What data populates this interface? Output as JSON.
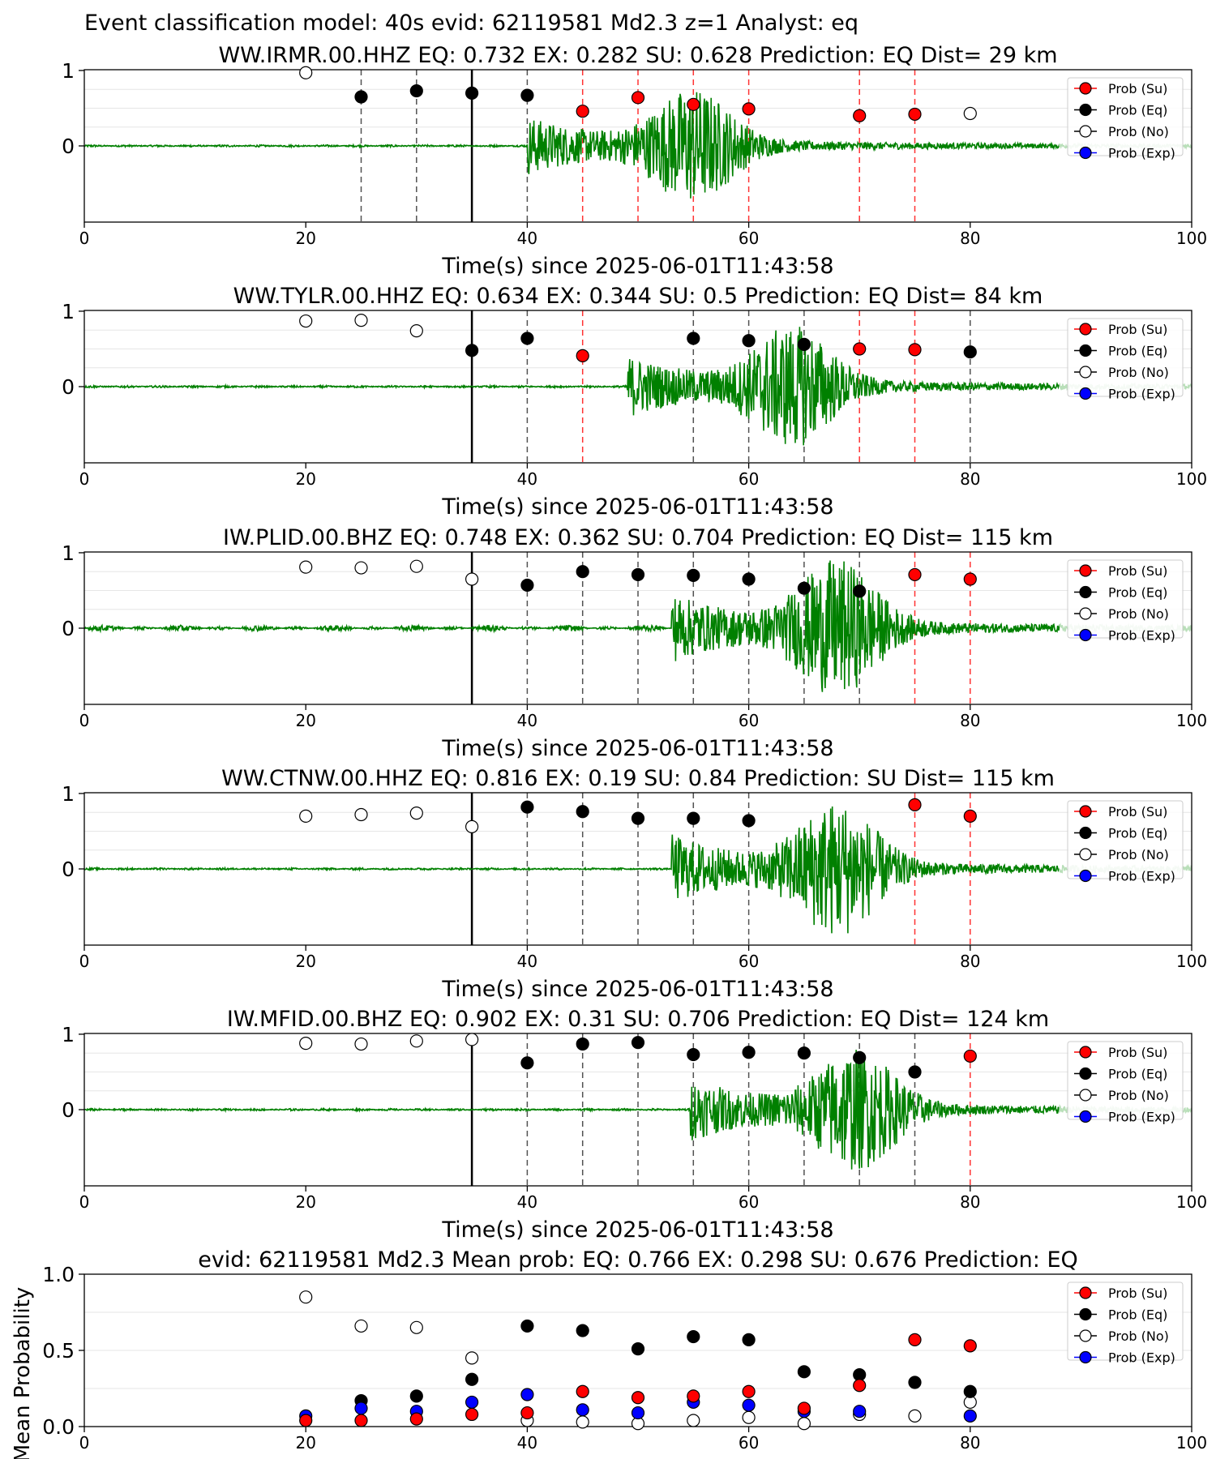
{
  "figure_title": "Event classification model: 40s evid: 62119581 Md2.3 z=1 Analyst: eq",
  "legend_labels": [
    "Prob (Su)",
    "Prob (Eq)",
    "Prob (No)",
    "Prob (Exp)"
  ],
  "colors": {
    "su": "#ff0000",
    "eq": "#000000",
    "no": "#ffffff",
    "exp": "#0000ff",
    "waveform": "#008000",
    "waveform_tail": "#b9dfb9"
  },
  "chart_data": [
    {
      "type": "scatter",
      "title": "WW.IRMR.00.HHZ   EQ: 0.732  EX: 0.282  SU: 0.628   Prediction: EQ    Dist= 29 km",
      "xlabel": "Time(s) since 2025-06-01T11:43:58",
      "ylabel": "",
      "xlim": [
        0,
        100
      ],
      "x_ticks": [
        "0",
        "20",
        "40",
        "60",
        "80",
        "100"
      ],
      "y_ticks": [
        "0",
        "1"
      ],
      "pick_time": 35,
      "waveform": {
        "onset": 40,
        "peak_amplitude": 0.85,
        "tail_start": 88
      },
      "series": [
        {
          "name": "Prob (No)",
          "points": [
            [
              20,
              0.97
            ],
            [
              80,
              0.43
            ]
          ]
        },
        {
          "name": "Prob (Eq)",
          "points": [
            [
              25,
              0.65
            ],
            [
              30,
              0.73
            ],
            [
              35,
              0.7
            ],
            [
              40,
              0.67
            ]
          ]
        },
        {
          "name": "Prob (Su)",
          "points": [
            [
              45,
              0.46
            ],
            [
              50,
              0.64
            ],
            [
              55,
              0.55
            ],
            [
              60,
              0.49
            ],
            [
              70,
              0.4
            ],
            [
              75,
              0.42
            ]
          ]
        }
      ],
      "window_markers": [
        {
          "x": 25,
          "class": "eq"
        },
        {
          "x": 30,
          "class": "eq"
        },
        {
          "x": 40,
          "class": "eq"
        },
        {
          "x": 45,
          "class": "su"
        },
        {
          "x": 50,
          "class": "su"
        },
        {
          "x": 55,
          "class": "su"
        },
        {
          "x": 60,
          "class": "su"
        },
        {
          "x": 70,
          "class": "su"
        },
        {
          "x": 75,
          "class": "su"
        }
      ]
    },
    {
      "type": "scatter",
      "title": "WW.TYLR.00.HHZ   EQ: 0.634  EX: 0.344  SU: 0.5   Prediction: EQ    Dist= 84 km",
      "xlabel": "Time(s) since 2025-06-01T11:43:58",
      "ylabel": "",
      "xlim": [
        0,
        100
      ],
      "x_ticks": [
        "0",
        "20",
        "40",
        "60",
        "80",
        "100"
      ],
      "y_ticks": [
        "0",
        "1"
      ],
      "pick_time": 35,
      "waveform": {
        "onset": 49,
        "peak_amplitude": 0.9,
        "tail_start": 88
      },
      "series": [
        {
          "name": "Prob (No)",
          "points": [
            [
              20,
              0.87
            ],
            [
              25,
              0.88
            ],
            [
              30,
              0.74
            ]
          ]
        },
        {
          "name": "Prob (Eq)",
          "points": [
            [
              35,
              0.48
            ],
            [
              40,
              0.64
            ],
            [
              55,
              0.64
            ],
            [
              60,
              0.61
            ],
            [
              65,
              0.56
            ],
            [
              80,
              0.46
            ]
          ]
        },
        {
          "name": "Prob (Su)",
          "points": [
            [
              45,
              0.41
            ],
            [
              70,
              0.5
            ],
            [
              75,
              0.49
            ]
          ]
        }
      ],
      "window_markers": [
        {
          "x": 40,
          "class": "eq"
        },
        {
          "x": 45,
          "class": "su"
        },
        {
          "x": 55,
          "class": "eq"
        },
        {
          "x": 60,
          "class": "eq"
        },
        {
          "x": 65,
          "class": "eq"
        },
        {
          "x": 70,
          "class": "su"
        },
        {
          "x": 75,
          "class": "su"
        },
        {
          "x": 80,
          "class": "eq"
        }
      ]
    },
    {
      "type": "scatter",
      "title": "IW.PLID.00.BHZ   EQ: 0.748  EX: 0.362  SU: 0.704   Prediction: EQ    Dist= 115 km",
      "xlabel": "Time(s) since 2025-06-01T11:43:58",
      "ylabel": "",
      "xlim": [
        0,
        100
      ],
      "x_ticks": [
        "0",
        "20",
        "40",
        "60",
        "80",
        "100"
      ],
      "y_ticks": [
        "0",
        "1"
      ],
      "pick_time": 35,
      "waveform": {
        "onset": 53,
        "peak_amplitude": 1.0,
        "tail_start": 88
      },
      "series": [
        {
          "name": "Prob (No)",
          "points": [
            [
              20,
              0.81
            ],
            [
              25,
              0.8
            ],
            [
              30,
              0.82
            ],
            [
              35,
              0.65
            ]
          ]
        },
        {
          "name": "Prob (Eq)",
          "points": [
            [
              40,
              0.57
            ],
            [
              45,
              0.75
            ],
            [
              50,
              0.71
            ],
            [
              55,
              0.7
            ],
            [
              60,
              0.65
            ],
            [
              65,
              0.53
            ],
            [
              70,
              0.49
            ]
          ]
        },
        {
          "name": "Prob (Su)",
          "points": [
            [
              75,
              0.71
            ],
            [
              80,
              0.65
            ]
          ]
        }
      ],
      "window_markers": [
        {
          "x": 40,
          "class": "eq"
        },
        {
          "x": 45,
          "class": "eq"
        },
        {
          "x": 50,
          "class": "eq"
        },
        {
          "x": 55,
          "class": "eq"
        },
        {
          "x": 60,
          "class": "eq"
        },
        {
          "x": 65,
          "class": "eq"
        },
        {
          "x": 70,
          "class": "eq"
        },
        {
          "x": 75,
          "class": "su"
        },
        {
          "x": 80,
          "class": "su"
        }
      ]
    },
    {
      "type": "scatter",
      "title": "WW.CTNW.00.HHZ   EQ: 0.816  EX: 0.19  SU: 0.84   Prediction: SU    Dist= 115 km",
      "xlabel": "Time(s) since 2025-06-01T11:43:58",
      "ylabel": "",
      "xlim": [
        0,
        100
      ],
      "x_ticks": [
        "0",
        "20",
        "40",
        "60",
        "80",
        "100"
      ],
      "y_ticks": [
        "0",
        "1"
      ],
      "pick_time": 35,
      "waveform": {
        "onset": 53,
        "peak_amplitude": 1.0,
        "tail_start": 88
      },
      "series": [
        {
          "name": "Prob (No)",
          "points": [
            [
              20,
              0.7
            ],
            [
              25,
              0.72
            ],
            [
              30,
              0.74
            ],
            [
              35,
              0.56
            ]
          ]
        },
        {
          "name": "Prob (Eq)",
          "points": [
            [
              40,
              0.82
            ],
            [
              45,
              0.76
            ],
            [
              50,
              0.67
            ],
            [
              55,
              0.67
            ],
            [
              60,
              0.64
            ]
          ]
        },
        {
          "name": "Prob (Su)",
          "points": [
            [
              75,
              0.85
            ],
            [
              80,
              0.7
            ]
          ]
        }
      ],
      "window_markers": [
        {
          "x": 40,
          "class": "eq"
        },
        {
          "x": 45,
          "class": "eq"
        },
        {
          "x": 50,
          "class": "eq"
        },
        {
          "x": 55,
          "class": "eq"
        },
        {
          "x": 60,
          "class": "eq"
        },
        {
          "x": 75,
          "class": "su"
        },
        {
          "x": 80,
          "class": "su"
        }
      ]
    },
    {
      "type": "scatter",
      "title": "IW.MFID.00.BHZ   EQ: 0.902  EX: 0.31  SU: 0.706   Prediction: EQ    Dist= 124 km",
      "xlabel": "Time(s) since 2025-06-01T11:43:58",
      "ylabel": "",
      "xlim": [
        0,
        100
      ],
      "x_ticks": [
        "0",
        "20",
        "40",
        "60",
        "80",
        "100"
      ],
      "y_ticks": [
        "0",
        "1"
      ],
      "pick_time": 35,
      "waveform": {
        "onset": 54.7,
        "peak_amplitude": 0.9,
        "tail_start": 88
      },
      "series": [
        {
          "name": "Prob (No)",
          "points": [
            [
              20,
              0.88
            ],
            [
              25,
              0.87
            ],
            [
              30,
              0.91
            ],
            [
              35,
              0.93
            ]
          ]
        },
        {
          "name": "Prob (Eq)",
          "points": [
            [
              40,
              0.62
            ],
            [
              45,
              0.87
            ],
            [
              50,
              0.89
            ],
            [
              55,
              0.73
            ],
            [
              60,
              0.76
            ],
            [
              65,
              0.75
            ],
            [
              70,
              0.69
            ],
            [
              75,
              0.5
            ]
          ]
        },
        {
          "name": "Prob (Su)",
          "points": [
            [
              80,
              0.71
            ]
          ]
        }
      ],
      "window_markers": [
        {
          "x": 40,
          "class": "eq"
        },
        {
          "x": 45,
          "class": "eq"
        },
        {
          "x": 50,
          "class": "eq"
        },
        {
          "x": 55,
          "class": "eq"
        },
        {
          "x": 60,
          "class": "eq"
        },
        {
          "x": 65,
          "class": "eq"
        },
        {
          "x": 70,
          "class": "eq"
        },
        {
          "x": 75,
          "class": "eq"
        },
        {
          "x": 80,
          "class": "su"
        }
      ]
    },
    {
      "type": "scatter",
      "title": "evid: 62119581  Md2.3   Mean prob:   EQ: 0.766  EX: 0.298  SU: 0.676   Prediction: EQ",
      "xlabel": "",
      "ylabel": "Mean Probability",
      "xlim": [
        0,
        100
      ],
      "ylim": [
        0,
        1
      ],
      "x_ticks": [
        "0",
        "20",
        "40",
        "60",
        "80",
        "100"
      ],
      "y_ticks": [
        "0.0",
        "0.5",
        "1.0"
      ],
      "series": [
        {
          "name": "Prob (No)",
          "points": [
            [
              20,
              0.85
            ],
            [
              25,
              0.66
            ],
            [
              30,
              0.65
            ],
            [
              35,
              0.45
            ],
            [
              40,
              0.04
            ],
            [
              45,
              0.03
            ],
            [
              50,
              0.02
            ],
            [
              55,
              0.04
            ],
            [
              60,
              0.06
            ],
            [
              65,
              0.02
            ],
            [
              70,
              0.08
            ],
            [
              75,
              0.07
            ],
            [
              80,
              0.16
            ]
          ]
        },
        {
          "name": "Prob (Eq)",
          "points": [
            [
              25,
              0.17
            ],
            [
              30,
              0.2
            ],
            [
              35,
              0.31
            ],
            [
              40,
              0.66
            ],
            [
              45,
              0.63
            ],
            [
              50,
              0.51
            ],
            [
              55,
              0.59
            ],
            [
              60,
              0.57
            ],
            [
              65,
              0.36
            ],
            [
              70,
              0.34
            ],
            [
              75,
              0.29
            ],
            [
              80,
              0.23
            ]
          ]
        },
        {
          "name": "Prob (Exp)",
          "points": [
            [
              20,
              0.07
            ],
            [
              25,
              0.12
            ],
            [
              30,
              0.1
            ],
            [
              35,
              0.16
            ],
            [
              40,
              0.21
            ],
            [
              45,
              0.11
            ],
            [
              50,
              0.09
            ],
            [
              55,
              0.16
            ],
            [
              60,
              0.14
            ],
            [
              65,
              0.1
            ],
            [
              70,
              0.1
            ],
            [
              80,
              0.07
            ]
          ]
        },
        {
          "name": "Prob (Su)",
          "points": [
            [
              20,
              0.04
            ],
            [
              25,
              0.04
            ],
            [
              30,
              0.05
            ],
            [
              35,
              0.08
            ],
            [
              40,
              0.09
            ],
            [
              45,
              0.23
            ],
            [
              50,
              0.19
            ],
            [
              55,
              0.2
            ],
            [
              60,
              0.23
            ],
            [
              65,
              0.12
            ],
            [
              70,
              0.27
            ],
            [
              75,
              0.57
            ],
            [
              80,
              0.53
            ]
          ]
        }
      ]
    }
  ]
}
